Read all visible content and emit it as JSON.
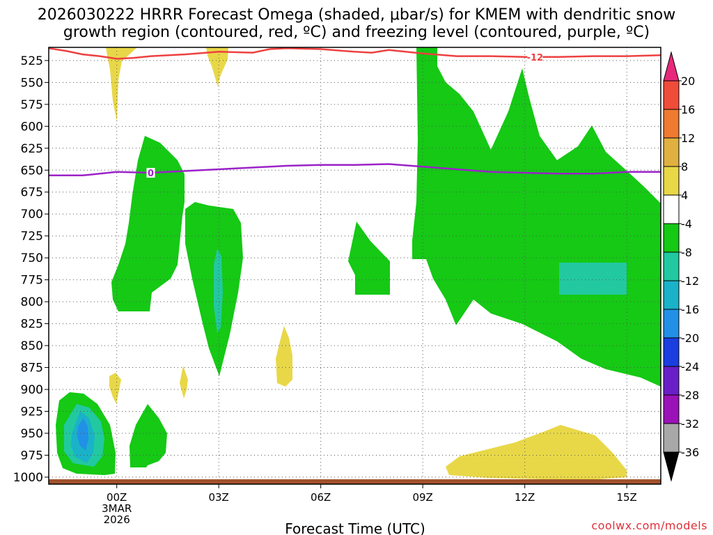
{
  "chart_data": {
    "type": "heatmap",
    "title_line1": "2026030222 HRRR Forecast Omega (shaded, μbar/s) for KMEM with dendritic snow",
    "title_line2": "growth region (contoured, red, ºC) and freezing level (contoured, purple, ºC)",
    "xlabel": "Forecast Time (UTC)",
    "credit": "coolwx.com/models",
    "x_ticks": [
      {
        "label": "00Z",
        "sub1": "3MAR",
        "sub2": "2026",
        "hour": 0
      },
      {
        "label": "03Z",
        "hour": 3
      },
      {
        "label": "06Z",
        "hour": 6
      },
      {
        "label": "09Z",
        "hour": 9
      },
      {
        "label": "12Z",
        "hour": 12
      },
      {
        "label": "15Z",
        "hour": 15
      }
    ],
    "x_range_hours": [
      -2,
      16
    ],
    "y_range_mb": [
      1008,
      510
    ],
    "y_ticks": [
      "525",
      "550",
      "575",
      "600",
      "625",
      "650",
      "675",
      "700",
      "725",
      "750",
      "775",
      "800",
      "825",
      "850",
      "875",
      "900",
      "925",
      "950",
      "975",
      "1000"
    ],
    "colorbar": {
      "labels": [
        "20",
        "16",
        "12",
        "8",
        "4",
        "-4",
        "-8",
        "-12",
        "-16",
        "-20",
        "-24",
        "-28",
        "-32",
        "-36"
      ],
      "colors": [
        "#e8287a",
        "#f04c3a",
        "#f07a30",
        "#e0b040",
        "#e8d848",
        "#ffffff",
        "#15c915",
        "#22c9a0",
        "#1ab2c8",
        "#2290e6",
        "#1a3ee0",
        "#6a1ec8",
        "#9a12b8",
        "#a8a8a8",
        "#000000"
      ]
    },
    "contours": {
      "dgz_label": "-12",
      "freezing_label": "0",
      "dgz_pressure_mb": [
        [
          -2,
          511
        ],
        [
          -1.5,
          514
        ],
        [
          -1,
          518
        ],
        [
          -0.5,
          520
        ],
        [
          0,
          523
        ],
        [
          0.5,
          522
        ],
        [
          1,
          520
        ],
        [
          2,
          518
        ],
        [
          3,
          515
        ],
        [
          4,
          516
        ],
        [
          4.5,
          512
        ],
        [
          5,
          511
        ],
        [
          6,
          512
        ],
        [
          7,
          515
        ],
        [
          7.5,
          516
        ],
        [
          8,
          513
        ],
        [
          9,
          517
        ],
        [
          10,
          520
        ],
        [
          11,
          520
        ],
        [
          12,
          521
        ],
        [
          13,
          521
        ],
        [
          14,
          520
        ],
        [
          15,
          520
        ],
        [
          16,
          519
        ]
      ],
      "freezing_pressure_mb": [
        [
          -2,
          656
        ],
        [
          -1,
          656
        ],
        [
          0,
          652
        ],
        [
          1,
          653
        ],
        [
          2,
          651
        ],
        [
          3,
          649
        ],
        [
          4,
          647
        ],
        [
          5,
          645
        ],
        [
          6,
          644
        ],
        [
          7,
          644
        ],
        [
          8,
          643
        ],
        [
          9,
          646
        ],
        [
          10,
          649
        ],
        [
          11,
          652
        ],
        [
          12,
          653
        ],
        [
          13,
          654
        ],
        [
          14,
          654
        ],
        [
          15,
          652
        ],
        [
          16,
          652
        ]
      ]
    },
    "surface": {
      "color": "#a0522d"
    },
    "series": [
      {
        "name": "upward_motion_-4_to_-8",
        "color": "#15c915"
      },
      {
        "name": "upward_motion_-8_to_-12",
        "color": "#22c9a0"
      },
      {
        "name": "upward_motion_-12_to_-16",
        "color": "#1ab2c8"
      },
      {
        "name": "upward_motion_-16_to_-20",
        "color": "#2290e6"
      },
      {
        "name": "downward_motion_4_to_8",
        "color": "#e8d848"
      }
    ]
  }
}
